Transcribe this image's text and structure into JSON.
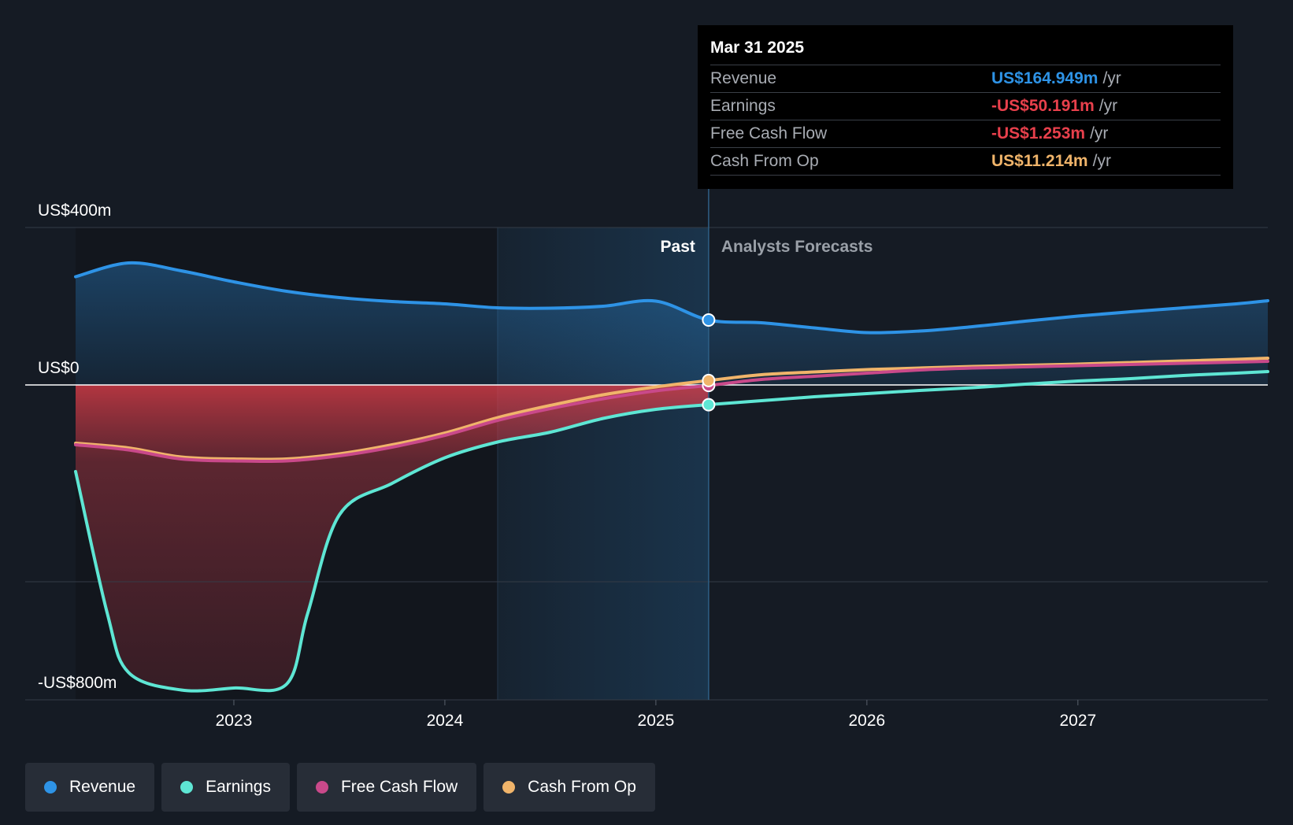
{
  "chart_data": {
    "type": "area",
    "x_start": 2022.25,
    "x_end": 2027.9,
    "past_end": 2025.25,
    "ylim": [
      -800,
      400
    ],
    "ytick_labels": [
      {
        "value": 400,
        "label": "US$400m"
      },
      {
        "value": 0,
        "label": "US$0"
      },
      {
        "value": -800,
        "label": "-US$800m"
      }
    ],
    "gridlines": [
      400,
      0,
      -500,
      -800
    ],
    "xticks": [
      {
        "value": 2023,
        "label": "2023"
      },
      {
        "value": 2024,
        "label": "2024"
      },
      {
        "value": 2025,
        "label": "2025"
      },
      {
        "value": 2026,
        "label": "2026"
      },
      {
        "value": 2027,
        "label": "2027"
      }
    ],
    "past_label": "Past",
    "forecast_label": "Analysts Forecasts",
    "series": [
      {
        "name": "Revenue",
        "color": "#2e93e6",
        "points": [
          [
            2022.25,
            275
          ],
          [
            2022.5,
            310
          ],
          [
            2022.75,
            290
          ],
          [
            2023,
            262
          ],
          [
            2023.25,
            238
          ],
          [
            2023.5,
            222
          ],
          [
            2023.75,
            212
          ],
          [
            2024,
            206
          ],
          [
            2024.25,
            196
          ],
          [
            2024.5,
            195
          ],
          [
            2024.75,
            200
          ],
          [
            2025,
            213
          ],
          [
            2025.25,
            165
          ],
          [
            2025.5,
            158
          ],
          [
            2025.75,
            145
          ],
          [
            2026,
            133
          ],
          [
            2026.25,
            137
          ],
          [
            2026.5,
            148
          ],
          [
            2026.75,
            162
          ],
          [
            2027,
            175
          ],
          [
            2027.25,
            186
          ],
          [
            2027.5,
            196
          ],
          [
            2027.75,
            206
          ],
          [
            2027.9,
            214
          ]
        ]
      },
      {
        "name": "Earnings",
        "color": "#5ee6d4",
        "points": [
          [
            2022.25,
            -220
          ],
          [
            2022.4,
            -580
          ],
          [
            2022.5,
            -730
          ],
          [
            2022.75,
            -775
          ],
          [
            2023,
            -770
          ],
          [
            2023.25,
            -760
          ],
          [
            2023.35,
            -580
          ],
          [
            2023.5,
            -330
          ],
          [
            2023.75,
            -250
          ],
          [
            2024,
            -185
          ],
          [
            2024.25,
            -145
          ],
          [
            2024.5,
            -120
          ],
          [
            2024.75,
            -85
          ],
          [
            2025,
            -62
          ],
          [
            2025.25,
            -50
          ],
          [
            2025.5,
            -40
          ],
          [
            2025.75,
            -30
          ],
          [
            2026,
            -22
          ],
          [
            2026.25,
            -14
          ],
          [
            2026.5,
            -7
          ],
          [
            2026.75,
            2
          ],
          [
            2027,
            10
          ],
          [
            2027.25,
            16
          ],
          [
            2027.5,
            24
          ],
          [
            2027.75,
            30
          ],
          [
            2027.9,
            34
          ]
        ]
      },
      {
        "name": "Free Cash Flow",
        "color": "#c9498a",
        "points": [
          [
            2022.25,
            -152
          ],
          [
            2022.5,
            -165
          ],
          [
            2022.75,
            -188
          ],
          [
            2023,
            -193
          ],
          [
            2023.25,
            -193
          ],
          [
            2023.5,
            -180
          ],
          [
            2023.75,
            -158
          ],
          [
            2024,
            -128
          ],
          [
            2024.25,
            -90
          ],
          [
            2024.5,
            -60
          ],
          [
            2024.75,
            -35
          ],
          [
            2025,
            -15
          ],
          [
            2025.25,
            -1.253
          ],
          [
            2025.5,
            14
          ],
          [
            2025.75,
            22
          ],
          [
            2026,
            30
          ],
          [
            2026.25,
            38
          ],
          [
            2026.5,
            43
          ],
          [
            2026.75,
            46
          ],
          [
            2027,
            49
          ],
          [
            2027.25,
            52
          ],
          [
            2027.5,
            55
          ],
          [
            2027.75,
            58
          ],
          [
            2027.9,
            60
          ]
        ]
      },
      {
        "name": "Cash From Op",
        "color": "#f0b46a",
        "points": [
          [
            2022.25,
            -148
          ],
          [
            2022.5,
            -160
          ],
          [
            2022.75,
            -183
          ],
          [
            2023,
            -188
          ],
          [
            2023.25,
            -188
          ],
          [
            2023.5,
            -175
          ],
          [
            2023.75,
            -152
          ],
          [
            2024,
            -122
          ],
          [
            2024.25,
            -83
          ],
          [
            2024.5,
            -52
          ],
          [
            2024.75,
            -25
          ],
          [
            2025,
            -5
          ],
          [
            2025.25,
            11.214
          ],
          [
            2025.5,
            26
          ],
          [
            2025.75,
            33
          ],
          [
            2026,
            39
          ],
          [
            2026.25,
            43
          ],
          [
            2026.5,
            47
          ],
          [
            2026.75,
            50
          ],
          [
            2027,
            53
          ],
          [
            2027.25,
            57
          ],
          [
            2027.5,
            61
          ],
          [
            2027.75,
            65
          ],
          [
            2027.9,
            68
          ]
        ]
      }
    ],
    "markers": [
      {
        "x": 2025.25,
        "y": 165,
        "color": "#2e93e6"
      },
      {
        "x": 2025.25,
        "y": -50.191,
        "color": "#5ee6d4"
      },
      {
        "x": 2025.25,
        "y": -1.253,
        "color": "#c9498a"
      },
      {
        "x": 2025.25,
        "y": 11.214,
        "color": "#f0b46a"
      }
    ]
  },
  "tooltip": {
    "date": "Mar 31 2025",
    "rows": [
      {
        "label": "Revenue",
        "value": "US$164.949m",
        "unit": "/yr",
        "color": "#2e93e6"
      },
      {
        "label": "Earnings",
        "value": "-US$50.191m",
        "unit": "/yr",
        "color": "#e8404c"
      },
      {
        "label": "Free Cash Flow",
        "value": "-US$1.253m",
        "unit": "/yr",
        "color": "#e8404c"
      },
      {
        "label": "Cash From Op",
        "value": "US$11.214m",
        "unit": "/yr",
        "color": "#f0b46a"
      }
    ]
  },
  "legend": [
    {
      "label": "Revenue",
      "color": "#2e93e6"
    },
    {
      "label": "Earnings",
      "color": "#5ee6d4"
    },
    {
      "label": "Free Cash Flow",
      "color": "#c9498a"
    },
    {
      "label": "Cash From Op",
      "color": "#f0b46a"
    }
  ]
}
